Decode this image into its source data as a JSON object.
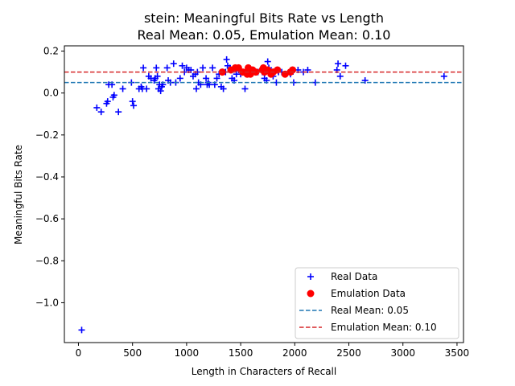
{
  "chart_data": {
    "type": "scatter",
    "title_line1": "stein: Meaningful Bits Rate vs Length",
    "title_line2": "Real Mean: 0.05, Emulation Mean: 0.10",
    "xlabel": "Length in Characters of Recall",
    "ylabel": "Meaningful Bits Rate",
    "xlim": [
      -130,
      3560
    ],
    "ylim": [
      -1.19,
      0.225
    ],
    "x_ticks": [
      0,
      500,
      1000,
      1500,
      2000,
      2500,
      3000,
      3500
    ],
    "y_ticks": [
      0.2,
      0.0,
      -0.2,
      -0.4,
      -0.6,
      -0.8,
      -1.0
    ],
    "y_tick_labels": [
      "0.2",
      "0.0",
      "−0.2",
      "−0.4",
      "−0.6",
      "−0.8",
      "−1.0"
    ],
    "legend_position": "lower right",
    "series": [
      {
        "name": "Real Data",
        "marker": "plus",
        "color": "#0000ff",
        "points": [
          [
            30,
            -1.13
          ],
          [
            170,
            -0.07
          ],
          [
            210,
            -0.09
          ],
          [
            260,
            -0.05
          ],
          [
            270,
            -0.04
          ],
          [
            280,
            0.04
          ],
          [
            310,
            0.04
          ],
          [
            320,
            -0.02
          ],
          [
            330,
            -0.01
          ],
          [
            370,
            -0.09
          ],
          [
            410,
            0.02
          ],
          [
            490,
            0.05
          ],
          [
            500,
            -0.04
          ],
          [
            510,
            -0.06
          ],
          [
            560,
            0.02
          ],
          [
            580,
            0.03
          ],
          [
            590,
            0.02
          ],
          [
            600,
            0.12
          ],
          [
            630,
            0.02
          ],
          [
            650,
            0.08
          ],
          [
            670,
            0.07
          ],
          [
            700,
            0.06
          ],
          [
            710,
            0.07
          ],
          [
            720,
            0.12
          ],
          [
            730,
            0.08
          ],
          [
            740,
            0.02
          ],
          [
            750,
            0.04
          ],
          [
            760,
            0.01
          ],
          [
            770,
            0.03
          ],
          [
            780,
            0.04
          ],
          [
            820,
            0.12
          ],
          [
            830,
            0.06
          ],
          [
            850,
            0.05
          ],
          [
            880,
            0.14
          ],
          [
            900,
            0.05
          ],
          [
            940,
            0.07
          ],
          [
            960,
            0.13
          ],
          [
            980,
            0.1
          ],
          [
            1000,
            0.12
          ],
          [
            1020,
            0.11
          ],
          [
            1040,
            0.11
          ],
          [
            1060,
            0.08
          ],
          [
            1080,
            0.09
          ],
          [
            1090,
            0.02
          ],
          [
            1100,
            0.1
          ],
          [
            1110,
            0.05
          ],
          [
            1130,
            0.04
          ],
          [
            1150,
            0.12
          ],
          [
            1180,
            0.07
          ],
          [
            1190,
            0.04
          ],
          [
            1200,
            0.05
          ],
          [
            1210,
            0.04
          ],
          [
            1240,
            0.12
          ],
          [
            1260,
            0.04
          ],
          [
            1280,
            0.07
          ],
          [
            1300,
            0.09
          ],
          [
            1320,
            0.03
          ],
          [
            1340,
            0.02
          ],
          [
            1360,
            0.1
          ],
          [
            1370,
            0.16
          ],
          [
            1380,
            0.13
          ],
          [
            1400,
            0.12
          ],
          [
            1420,
            0.07
          ],
          [
            1440,
            0.06
          ],
          [
            1460,
            0.09
          ],
          [
            1480,
            0.11
          ],
          [
            1500,
            0.09
          ],
          [
            1520,
            0.1
          ],
          [
            1540,
            0.02
          ],
          [
            1560,
            0.11
          ],
          [
            1580,
            0.12
          ],
          [
            1600,
            0.1
          ],
          [
            1620,
            0.11
          ],
          [
            1660,
            0.1
          ],
          [
            1700,
            0.1
          ],
          [
            1720,
            0.07
          ],
          [
            1740,
            0.06
          ],
          [
            1750,
            0.15
          ],
          [
            1760,
            0.12
          ],
          [
            1780,
            0.1
          ],
          [
            1800,
            0.08
          ],
          [
            1830,
            0.05
          ],
          [
            1850,
            0.1
          ],
          [
            1880,
            0.1
          ],
          [
            1920,
            0.09
          ],
          [
            1960,
            0.09
          ],
          [
            1990,
            0.05
          ],
          [
            2030,
            0.11
          ],
          [
            2080,
            0.1
          ],
          [
            2120,
            0.11
          ],
          [
            2190,
            0.05
          ],
          [
            2390,
            0.11
          ],
          [
            2400,
            0.14
          ],
          [
            2420,
            0.08
          ],
          [
            2470,
            0.13
          ],
          [
            2650,
            0.06
          ],
          [
            3380,
            0.08
          ]
        ]
      },
      {
        "name": "Emulation Data",
        "marker": "circle",
        "color": "#ff0000",
        "points": [
          [
            1330,
            0.1
          ],
          [
            1410,
            0.11
          ],
          [
            1450,
            0.12
          ],
          [
            1480,
            0.12
          ],
          [
            1520,
            0.1
          ],
          [
            1560,
            0.09
          ],
          [
            1570,
            0.12
          ],
          [
            1590,
            0.09
          ],
          [
            1610,
            0.11
          ],
          [
            1640,
            0.1
          ],
          [
            1700,
            0.11
          ],
          [
            1710,
            0.12
          ],
          [
            1720,
            0.1
          ],
          [
            1750,
            0.11
          ],
          [
            1780,
            0.09
          ],
          [
            1800,
            0.1
          ],
          [
            1840,
            0.11
          ],
          [
            1910,
            0.09
          ],
          [
            1960,
            0.1
          ],
          [
            1980,
            0.11
          ]
        ]
      }
    ],
    "reference_lines": [
      {
        "name": "Real Mean: 0.05",
        "y": 0.05,
        "color": "#1f77b4",
        "style": "dashed"
      },
      {
        "name": "Emulation Mean: 0.10",
        "y": 0.1,
        "color": "#d62728",
        "style": "dashed"
      }
    ]
  }
}
